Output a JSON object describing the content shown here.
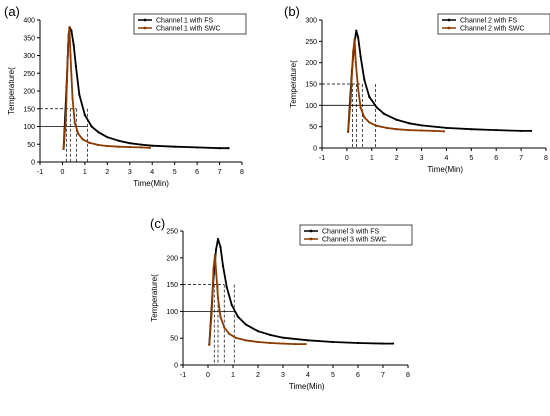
{
  "figure": {
    "background": "#ffffff"
  },
  "chart_data": [
    {
      "type": "line",
      "panel_label": "(a)",
      "xlabel": "Time(Min)",
      "ylabel": "Temperature(",
      "xlim": [
        -1,
        8
      ],
      "ylim": [
        0,
        400
      ],
      "xticks": [
        "-1",
        "0",
        "1",
        "2",
        "3",
        "4",
        "5",
        "6",
        "7",
        "8"
      ],
      "yticks": [
        "0",
        "50",
        "100",
        "150",
        "200",
        "250",
        "300",
        "350",
        "400"
      ],
      "legend_position": "top-right",
      "series": [
        {
          "name": "Channel 1 with FS",
          "color": "#000000",
          "x": [
            0.05,
            0.18,
            0.28,
            0.33,
            0.4,
            0.5,
            0.6,
            0.75,
            1.0,
            1.3,
            1.6,
            2.0,
            2.5,
            3.0,
            3.5,
            4.0,
            5.0,
            6.0,
            7.0,
            7.4
          ],
          "y": [
            37,
            210,
            360,
            378,
            370,
            330,
            270,
            190,
            132,
            100,
            84,
            70,
            60,
            53,
            49,
            46,
            43,
            41,
            39,
            39
          ]
        },
        {
          "name": "Channel 1 with SWC",
          "color": "#8b3a00",
          "x": [
            0.05,
            0.15,
            0.25,
            0.31,
            0.36,
            0.45,
            0.55,
            0.7,
            0.9,
            1.2,
            1.6,
            2.0,
            2.5,
            3.0,
            3.5,
            3.9
          ],
          "y": [
            37,
            120,
            330,
            380,
            300,
            180,
            110,
            80,
            64,
            54,
            48,
            45,
            43,
            42,
            41,
            40
          ]
        }
      ],
      "reference_levels": [
        150,
        100
      ],
      "reference_times": [
        0.18,
        0.35,
        0.62,
        1.12
      ]
    },
    {
      "type": "line",
      "panel_label": "(b)",
      "xlabel": "Time(Min)",
      "ylabel": "Temperature(",
      "xlim": [
        -1,
        8
      ],
      "ylim": [
        0,
        300
      ],
      "xticks": [
        "-1",
        "0",
        "1",
        "2",
        "3",
        "4",
        "5",
        "6",
        "7",
        "8"
      ],
      "yticks": [
        "0",
        "50",
        "100",
        "150",
        "200",
        "250",
        "300"
      ],
      "legend_position": "top-right",
      "series": [
        {
          "name": "Channel 2 with FS",
          "color": "#000000",
          "x": [
            0.05,
            0.2,
            0.3,
            0.38,
            0.45,
            0.55,
            0.7,
            0.9,
            1.2,
            1.5,
            2.0,
            2.5,
            3.0,
            4.0,
            5.0,
            6.0,
            7.0,
            7.4
          ],
          "y": [
            38,
            180,
            245,
            275,
            260,
            215,
            160,
            120,
            95,
            80,
            66,
            58,
            53,
            47,
            44,
            42,
            40,
            40
          ]
        },
        {
          "name": "Channel 2 with SWC",
          "color": "#8b3a00",
          "x": [
            0.05,
            0.15,
            0.25,
            0.31,
            0.36,
            0.45,
            0.55,
            0.7,
            0.9,
            1.2,
            1.6,
            2.0,
            2.5,
            3.0,
            3.5,
            3.9
          ],
          "y": [
            38,
            110,
            225,
            255,
            200,
            140,
            95,
            72,
            60,
            52,
            47,
            44,
            42,
            41,
            40,
            39
          ]
        }
      ],
      "reference_levels": [
        150,
        100
      ],
      "reference_times": [
        0.22,
        0.38,
        0.62,
        1.15
      ]
    },
    {
      "type": "line",
      "panel_label": "(c)",
      "xlabel": "Time(Min)",
      "ylabel": "Temperature(",
      "xlim": [
        -1,
        8
      ],
      "ylim": [
        0,
        250
      ],
      "xticks": [
        "-1",
        "0",
        "1",
        "2",
        "3",
        "4",
        "5",
        "6",
        "7",
        "8"
      ],
      "yticks": [
        "0",
        "50",
        "100",
        "150",
        "200",
        "250"
      ],
      "legend_position": "top-right",
      "series": [
        {
          "name": "Channel 3 with FS",
          "color": "#000000",
          "x": [
            0.05,
            0.2,
            0.32,
            0.4,
            0.5,
            0.6,
            0.75,
            0.95,
            1.2,
            1.5,
            2.0,
            2.5,
            3.0,
            4.0,
            5.0,
            6.0,
            7.0,
            7.4
          ],
          "y": [
            38,
            150,
            215,
            235,
            220,
            185,
            145,
            112,
            90,
            76,
            63,
            56,
            51,
            46,
            43,
            41,
            40,
            40
          ]
        },
        {
          "name": "Channel 3 with SWC",
          "color": "#8b3a00",
          "x": [
            0.05,
            0.15,
            0.22,
            0.28,
            0.33,
            0.4,
            0.5,
            0.65,
            0.85,
            1.1,
            1.5,
            2.0,
            2.5,
            3.0,
            3.5,
            3.9
          ],
          "y": [
            38,
            100,
            180,
            205,
            170,
            125,
            90,
            70,
            58,
            51,
            46,
            43,
            41,
            40,
            39,
            39
          ]
        }
      ],
      "reference_levels": [
        150,
        100
      ],
      "reference_times": [
        0.25,
        0.4,
        0.65,
        1.05
      ]
    }
  ]
}
